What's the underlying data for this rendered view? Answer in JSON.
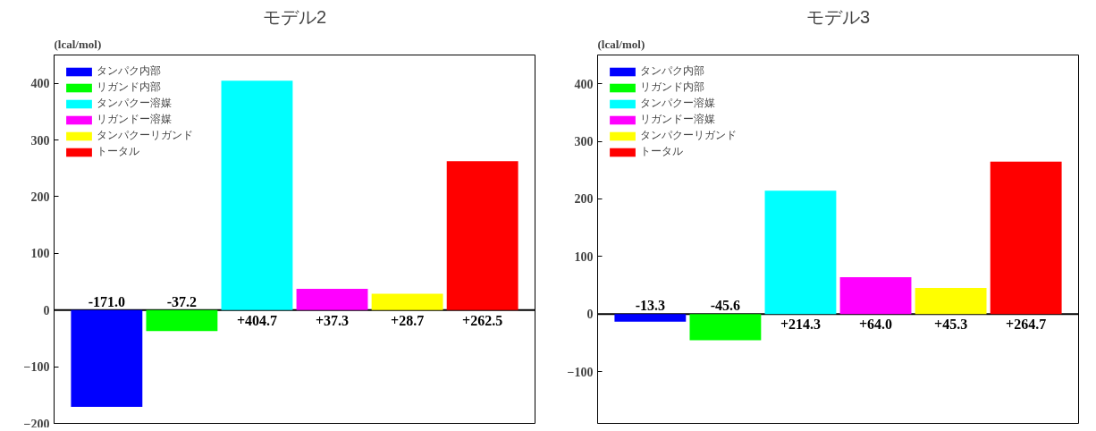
{
  "chart_data": [
    {
      "type": "bar",
      "title": "モデル2",
      "ylabel": "(lcal/mol)",
      "categories": [
        null,
        null,
        null,
        null,
        null,
        null
      ],
      "series": [
        {
          "name": "タンパク内部",
          "color": "#0000ff",
          "values": [
            -171.0,
            null,
            null,
            null,
            null,
            null
          ],
          "value_labels": [
            "-171.0",
            null,
            null,
            null,
            null,
            null
          ]
        },
        {
          "name": "リガンド内部",
          "color": "#00ff00",
          "values": [
            null,
            -37.2,
            null,
            null,
            null,
            null
          ],
          "value_labels": [
            null,
            "-37.2",
            null,
            null,
            null,
            null
          ]
        },
        {
          "name": "タンパクー溶媒",
          "color": "#00ffff",
          "values": [
            null,
            null,
            404.7,
            null,
            null,
            null
          ],
          "value_labels": [
            null,
            null,
            "+404.7",
            null,
            null,
            null
          ]
        },
        {
          "name": "リガンドー溶媒",
          "color": "#ff00ff",
          "values": [
            null,
            null,
            null,
            37.3,
            null,
            null
          ],
          "value_labels": [
            null,
            null,
            null,
            "+37.3",
            null,
            null
          ]
        },
        {
          "name": "タンパクーリガンド",
          "color": "#ffff00",
          "values": [
            null,
            null,
            null,
            null,
            28.7,
            null
          ],
          "value_labels": [
            null,
            null,
            null,
            null,
            "+28.7",
            null
          ]
        },
        {
          "name": "トータル",
          "color": "#ff0000",
          "values": [
            null,
            null,
            null,
            null,
            null,
            262.5
          ],
          "value_labels": [
            null,
            null,
            null,
            null,
            null,
            "+262.5"
          ]
        }
      ],
      "ylim": [
        -200,
        450
      ],
      "yticks": [
        -200,
        -100,
        0,
        100,
        200,
        300,
        400
      ],
      "grid": false,
      "legend": "top left",
      "ref_lines": [
        {
          "axis": "y",
          "value": 0
        }
      ]
    },
    {
      "type": "bar",
      "title": "モデル3",
      "ylabel": "(lcal/mol)",
      "categories": [
        null,
        null,
        null,
        null,
        null,
        null
      ],
      "series": [
        {
          "name": "タンパク内部",
          "color": "#0000ff",
          "values": [
            -13.3,
            null,
            null,
            null,
            null,
            null
          ],
          "value_labels": [
            "-13.3",
            null,
            null,
            null,
            null,
            null
          ]
        },
        {
          "name": "リガンド内部",
          "color": "#00ff00",
          "values": [
            null,
            -45.6,
            null,
            null,
            null,
            null
          ],
          "value_labels": [
            null,
            "-45.6",
            null,
            null,
            null,
            null
          ]
        },
        {
          "name": "タンパクー溶媒",
          "color": "#00ffff",
          "values": [
            null,
            null,
            214.3,
            null,
            null,
            null
          ],
          "value_labels": [
            null,
            null,
            "+214.3",
            null,
            null,
            null
          ]
        },
        {
          "name": "リガンドー溶媒",
          "color": "#ff00ff",
          "values": [
            null,
            null,
            null,
            64.0,
            null,
            null
          ],
          "value_labels": [
            null,
            null,
            null,
            "+64.0",
            null,
            null
          ]
        },
        {
          "name": "タンパクーリガンド",
          "color": "#ffff00",
          "values": [
            null,
            null,
            null,
            null,
            45.3,
            null
          ],
          "value_labels": [
            null,
            null,
            null,
            null,
            "+45.3",
            null
          ]
        },
        {
          "name": "トータル",
          "color": "#ff0000",
          "values": [
            null,
            null,
            null,
            null,
            null,
            264.7
          ],
          "value_labels": [
            null,
            null,
            null,
            null,
            null,
            "+264.7"
          ]
        }
      ],
      "ylim": [
        -190,
        450
      ],
      "yticks": [
        -100,
        0,
        100,
        200,
        300,
        400
      ],
      "grid": false,
      "legend": "top left",
      "ref_lines": [
        {
          "axis": "y",
          "value": 0
        }
      ]
    }
  ]
}
